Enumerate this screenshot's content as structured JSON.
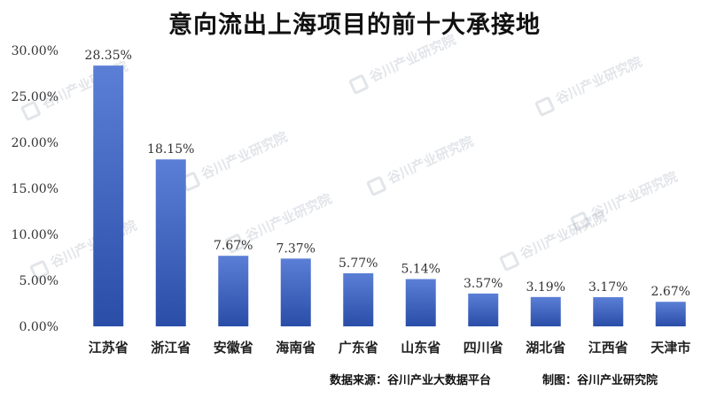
{
  "title": "意向流出上海项目的前十大承接地",
  "footer": {
    "source": "数据来源：谷川产业大数据平台",
    "maker": "制图：谷川产业研究院"
  },
  "watermark": "谷川产业研究院",
  "colors": {
    "bar_top": "#5b7fd6",
    "bar_bottom": "#2a4ea8",
    "axis_text": "#333333",
    "background": "#ffffff"
  },
  "chart_data": {
    "type": "bar",
    "title": "意向流出上海项目的前十大承接地",
    "categories": [
      "江苏省",
      "浙江省",
      "安徽省",
      "海南省",
      "广东省",
      "山东省",
      "四川省",
      "湖北省",
      "江西省",
      "天津市"
    ],
    "values": [
      28.35,
      18.15,
      7.67,
      7.37,
      5.77,
      5.14,
      3.57,
      3.19,
      3.17,
      2.67
    ],
    "data_labels": [
      "28.35%",
      "18.15%",
      "7.67%",
      "7.37%",
      "5.77%",
      "5.14%",
      "3.57%",
      "3.19%",
      "3.17%",
      "2.67%"
    ],
    "ylim": [
      0,
      30
    ],
    "yticks": [
      0,
      5,
      10,
      15,
      20,
      25,
      30
    ],
    "ytick_labels": [
      "0.00%",
      "5.00%",
      "10.00%",
      "15.00%",
      "20.00%",
      "25.00%",
      "30.00%"
    ],
    "xlabel": "",
    "ylabel": "",
    "grid": false,
    "legend": "none"
  }
}
